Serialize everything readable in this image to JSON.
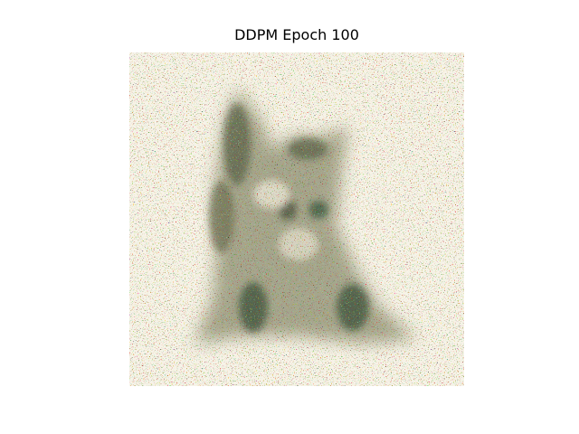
{
  "title": "DDPM Epoch 100"
}
